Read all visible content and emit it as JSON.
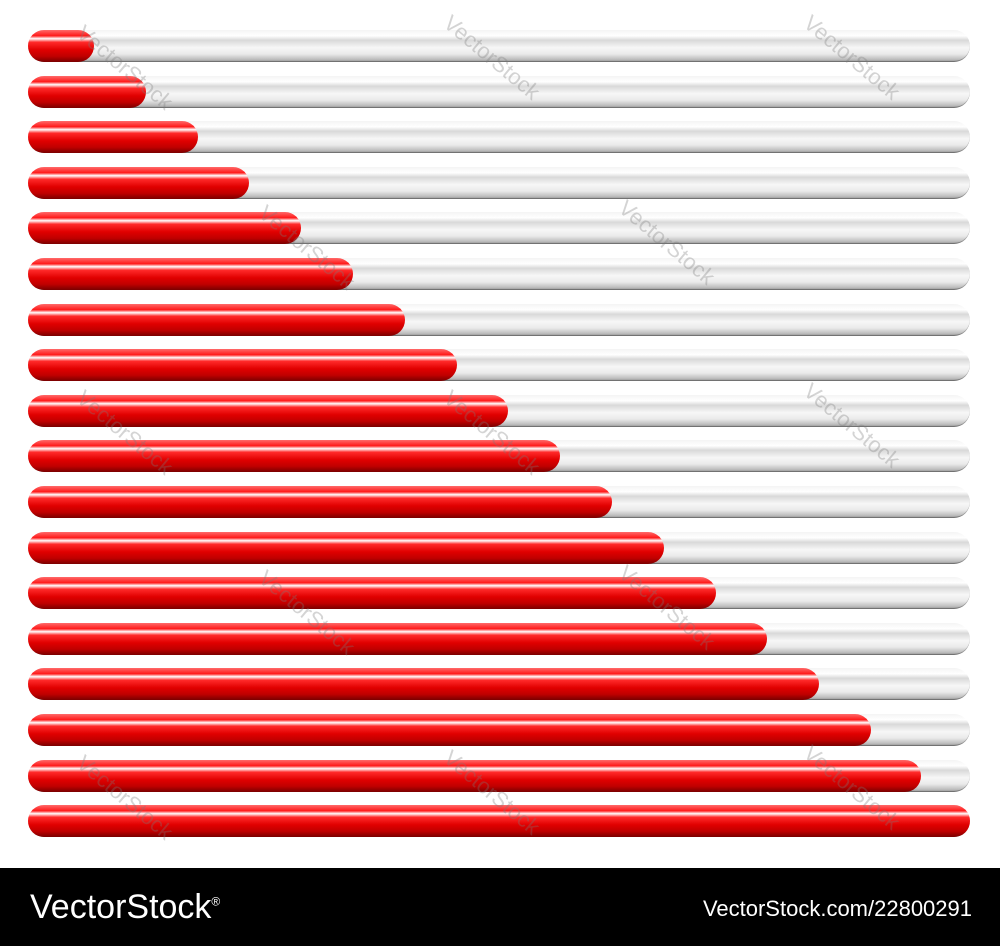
{
  "progress_bars": {
    "fill_color": "#e00000",
    "track_color": "#e6e6e6",
    "levels": [
      0.07,
      0.125,
      0.18,
      0.235,
      0.29,
      0.345,
      0.4,
      0.455,
      0.51,
      0.565,
      0.62,
      0.675,
      0.73,
      0.785,
      0.84,
      0.895,
      0.948,
      1.0
    ]
  },
  "watermark": {
    "text": "VectorStock"
  },
  "footer": {
    "brand": "VectorStock",
    "brand_mark": "®",
    "image_id": "VectorStock.com/22800291"
  }
}
